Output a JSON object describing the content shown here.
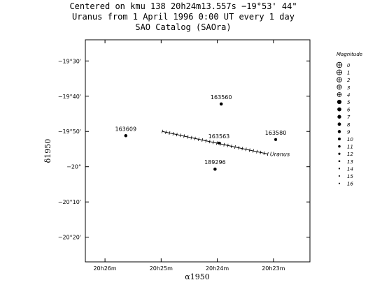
{
  "title": {
    "line1": "Centered on kmu 138 20h24m13.557s −19°53' 44\"",
    "line2": "Uranus from 1 April 1996 0:00 UT every 1 day",
    "line3": "SAO Catalog (SAOra)"
  },
  "chart_data": {
    "type": "scatter",
    "xlabel": "α1950",
    "ylabel": "δ1950",
    "x_ticks": [
      {
        "label": "20h26m",
        "ra_min": 26
      },
      {
        "label": "20h25m",
        "ra_min": 25
      },
      {
        "label": "20h24m",
        "ra_min": 24
      },
      {
        "label": "20h23m",
        "ra_min": 23
      }
    ],
    "y_ticks": [
      {
        "label": "−19°30'",
        "dec_arcmin": -1170
      },
      {
        "label": "−19°40'",
        "dec_arcmin": -1180
      },
      {
        "label": "−19°50'",
        "dec_arcmin": -1190
      },
      {
        "label": "−20°",
        "dec_arcmin": -1200
      },
      {
        "label": "−20°10'",
        "dec_arcmin": -1210
      },
      {
        "label": "−20°20'",
        "dec_arcmin": -1220
      }
    ],
    "xlim_ra_min": [
      26.35,
      22.35
    ],
    "ylim_dec_arcmin": [
      -1164,
      -1227
    ],
    "stars": [
      {
        "id": "163609",
        "ra_min": 25.63,
        "dec_arcmin": -1191.2,
        "mag": 7
      },
      {
        "id": "163560",
        "ra_min": 23.93,
        "dec_arcmin": -1182.2,
        "mag": 7
      },
      {
        "id": "163563",
        "ra_min": 23.97,
        "dec_arcmin": -1193.3,
        "mag": 8
      },
      {
        "id": "163580",
        "ra_min": 22.96,
        "dec_arcmin": -1192.3,
        "mag": 8
      },
      {
        "id": "189296",
        "ra_min": 24.04,
        "dec_arcmin": -1200.7,
        "mag": 7
      }
    ],
    "uranus_track": {
      "label": "Uranus",
      "start": {
        "ra_min": 24.98,
        "dec_arcmin": -1190.0
      },
      "end": {
        "ra_min": 23.1,
        "dec_arcmin": -1196.4
      },
      "marks": 30
    },
    "legend": {
      "title": "Magnitude",
      "placement": "right",
      "entries": [
        "0",
        "1",
        "2",
        "3",
        "4",
        "5",
        "6",
        "7",
        "8",
        "9",
        "10",
        "11",
        "12",
        "13",
        "14",
        "15",
        "16"
      ]
    }
  },
  "colors": {
    "background": "#ffffff",
    "ink": "#000000"
  }
}
